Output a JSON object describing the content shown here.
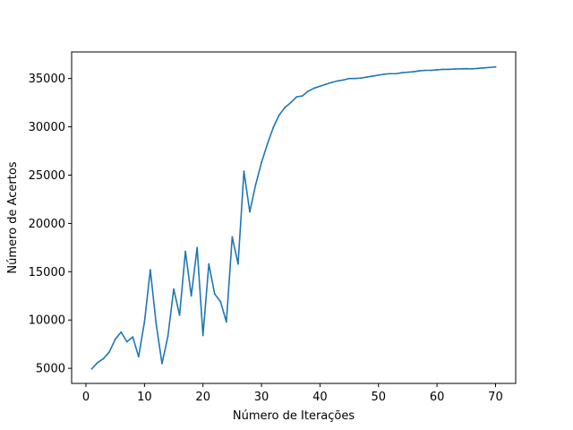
{
  "chart_data": {
    "type": "line",
    "title": "",
    "xlabel": "Número de Iterações",
    "ylabel": "Número de Acertos",
    "xlim": [
      -2.45,
      73.45
    ],
    "ylim": [
      3436,
      37750
    ],
    "grid": false,
    "xticks": [
      0,
      10,
      20,
      30,
      40,
      50,
      60,
      70
    ],
    "yticks": [
      5000,
      10000,
      15000,
      20000,
      25000,
      30000,
      35000
    ],
    "color": "#1f77b4",
    "series": [
      {
        "x": [
          1,
          2,
          3,
          4,
          5,
          6,
          7,
          8,
          9,
          10,
          11,
          12,
          13,
          14,
          15,
          16,
          17,
          18,
          19,
          20,
          21,
          22,
          23,
          24,
          25,
          26,
          27,
          28,
          29,
          30,
          31,
          32,
          33,
          34,
          35,
          36,
          37,
          38,
          39,
          40,
          41,
          42,
          43,
          44,
          45,
          46,
          47,
          48,
          49,
          50,
          51,
          52,
          53,
          54,
          55,
          56,
          57,
          58,
          59,
          60,
          61,
          62,
          63,
          64,
          65,
          66,
          67,
          68,
          69,
          70
        ],
        "values": [
          4950,
          5600,
          6000,
          6700,
          8000,
          8750,
          7750,
          8250,
          6200,
          9800,
          15200,
          9600,
          5500,
          8300,
          13200,
          10500,
          17100,
          12500,
          17500,
          8400,
          15800,
          12700,
          11900,
          9800,
          18600,
          15800,
          25400,
          21200,
          24000,
          26300,
          28200,
          29900,
          31200,
          32000,
          32500,
          33100,
          33200,
          33700,
          34000,
          34200,
          34400,
          34600,
          34750,
          34850,
          35000,
          35000,
          35050,
          35150,
          35250,
          35350,
          35450,
          35500,
          35500,
          35600,
          35650,
          35700,
          35800,
          35850,
          35850,
          35900,
          35950,
          35950,
          35980,
          36000,
          36020,
          36000,
          36050,
          36100,
          36150,
          36200
        ]
      }
    ]
  }
}
